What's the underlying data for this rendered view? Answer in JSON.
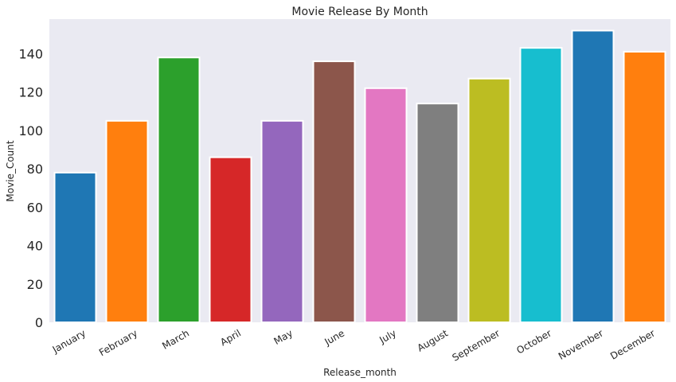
{
  "chart_data": {
    "type": "bar",
    "title": "Movie Release By Month",
    "xlabel": "Release_month",
    "ylabel": "Movie_Count",
    "categories": [
      "January",
      "February",
      "March",
      "April",
      "May",
      "June",
      "July",
      "August",
      "September",
      "October",
      "November",
      "December"
    ],
    "values": [
      78,
      105,
      138,
      86,
      105,
      136,
      122,
      114,
      127,
      143,
      152,
      141
    ],
    "ylim": [
      0,
      158
    ],
    "yticks": [
      0,
      20,
      40,
      60,
      80,
      100,
      120,
      140
    ],
    "grid": false,
    "background": "#eaeaf2",
    "colors": [
      "#1f77b4",
      "#ff7f0e",
      "#2ca02c",
      "#d62728",
      "#9467bd",
      "#8c564b",
      "#e377c2",
      "#7f7f7f",
      "#bcbd22",
      "#17becf",
      "#1f77b4",
      "#ff7f0e"
    ]
  }
}
